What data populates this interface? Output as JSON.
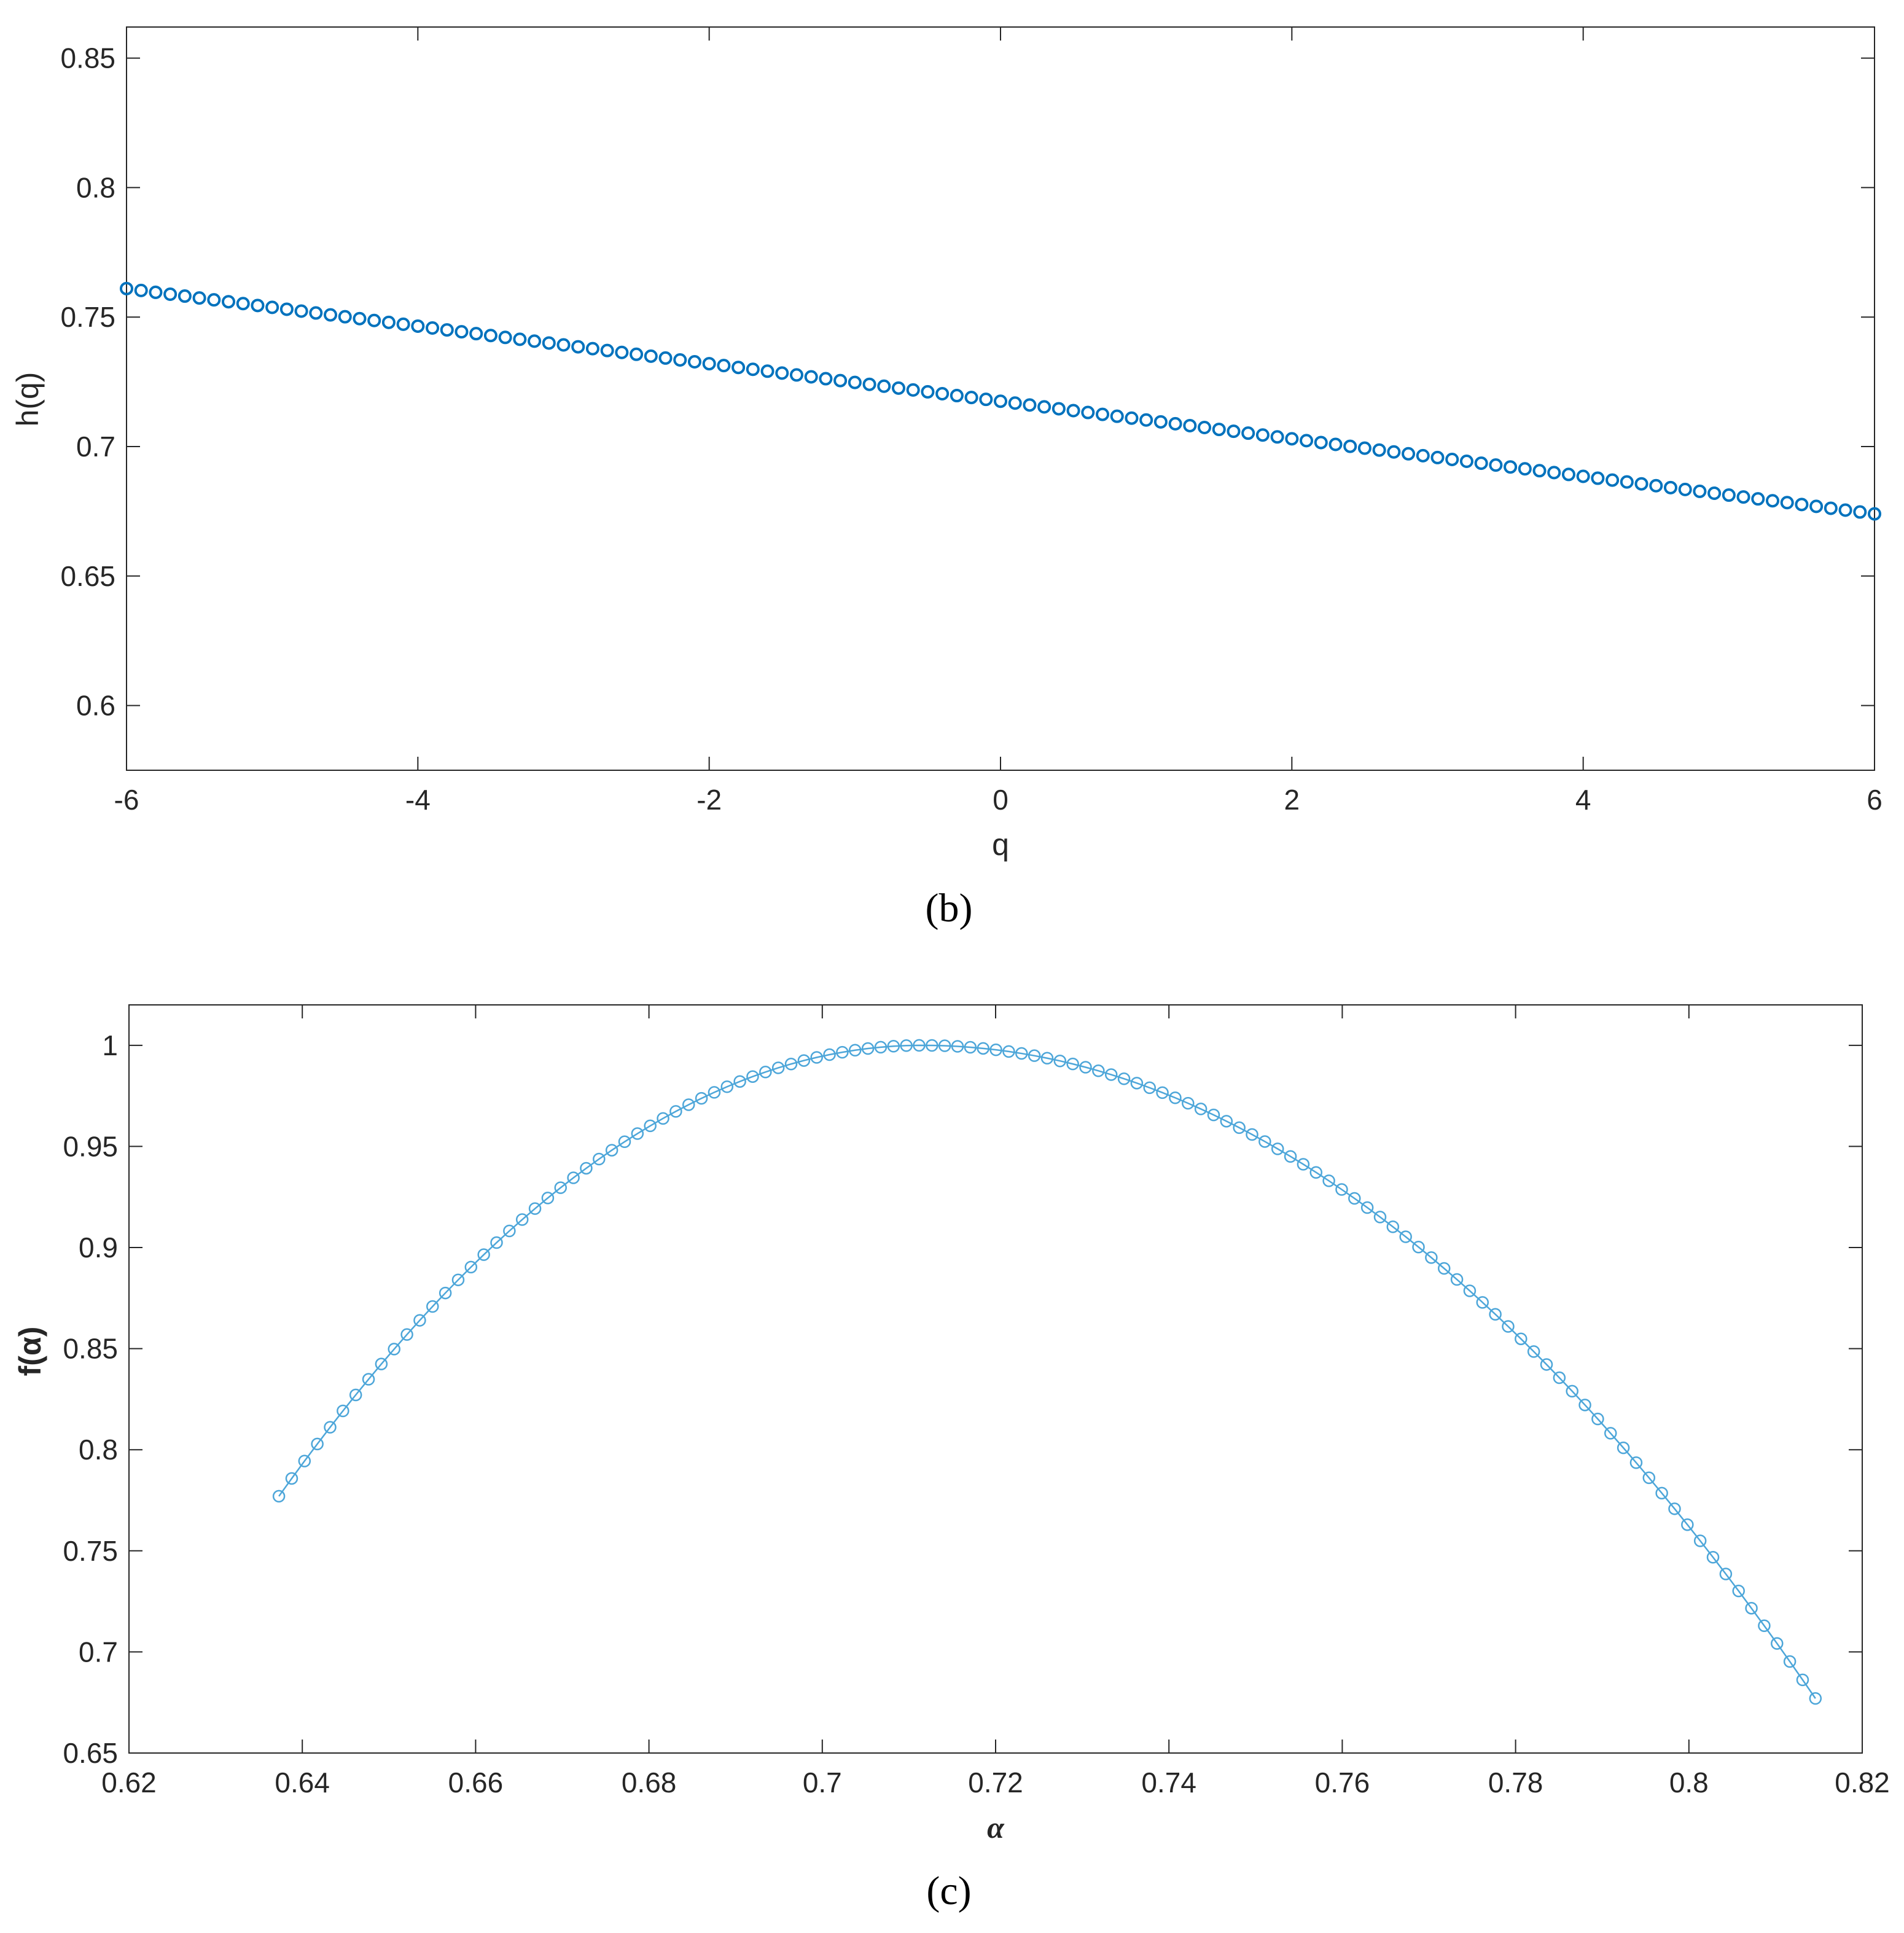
{
  "colors": {
    "series_b": "#0072BD",
    "series_c": "#4DA6D9",
    "axis": "#262626"
  },
  "chart_data": [
    {
      "type": "scatter",
      "panel_label": "(b)",
      "xlabel": "q",
      "ylabel": "h(q)",
      "xlim": [
        -6,
        6
      ],
      "ylim": [
        0.575,
        0.862
      ],
      "xticks": [
        -6,
        -4,
        -2,
        0,
        2,
        4,
        6
      ],
      "xtick_labels": [
        "-6",
        "-4",
        "-2",
        "0",
        "2",
        "4",
        "6"
      ],
      "yticks": [
        0.6,
        0.65,
        0.7,
        0.75,
        0.8,
        0.85
      ],
      "ytick_labels": [
        "0.6",
        "0.65",
        "0.7",
        "0.75",
        "0.8",
        "0.85"
      ],
      "grid": false,
      "marker": "circle",
      "series": [
        {
          "x": [
            -6,
            -5.9,
            -5.8,
            -5.7,
            -5.6,
            -5.5,
            -5.4,
            -5.3,
            -5.2,
            -5.1,
            -5,
            -4.9,
            -4.8,
            -4.7,
            -4.6,
            -4.5,
            -4.4,
            -4.3,
            -4.2,
            -4.1,
            -4,
            -3.9,
            -3.8,
            -3.7,
            -3.6,
            -3.5,
            -3.4,
            -3.3,
            -3.2,
            -3.1,
            -3,
            -2.9,
            -2.8,
            -2.7,
            -2.6,
            -2.5,
            -2.4,
            -2.3,
            -2.2,
            -2.1,
            -2,
            -1.9,
            -1.8,
            -1.7,
            -1.6,
            -1.5,
            -1.4,
            -1.3,
            -1.2,
            -1.1,
            -1,
            -0.9,
            -0.8,
            -0.7,
            -0.6,
            -0.5,
            -0.4,
            -0.3,
            -0.2,
            -0.1,
            0,
            0.1,
            0.2,
            0.3,
            0.4,
            0.5,
            0.6,
            0.7,
            0.8,
            0.9,
            1,
            1.1,
            1.2,
            1.3,
            1.4,
            1.5,
            1.6,
            1.7,
            1.8,
            1.9,
            2,
            2.1,
            2.2,
            2.3,
            2.4,
            2.5,
            2.6,
            2.7,
            2.8,
            2.9,
            3,
            3.1,
            3.2,
            3.3,
            3.4,
            3.5,
            3.6,
            3.7,
            3.8,
            3.9,
            4,
            4.1,
            4.2,
            4.3,
            4.4,
            4.5,
            4.6,
            4.7,
            4.8,
            4.9,
            5,
            5.1,
            5.2,
            5.3,
            5.4,
            5.5,
            5.6,
            5.7,
            5.8,
            5.9,
            6
          ],
          "y": [
            0.761,
            0.7601,
            0.7592,
            0.7583,
            0.7574,
            0.7565,
            0.7556,
            0.7547,
            0.7538,
            0.7529,
            0.752,
            0.7511,
            0.7502,
            0.7493,
            0.7484,
            0.7475,
            0.7466,
            0.7457,
            0.7448,
            0.7439,
            0.743,
            0.7421,
            0.7412,
            0.7403,
            0.7394,
            0.7385,
            0.7376,
            0.7367,
            0.7358,
            0.7349,
            0.734,
            0.7331,
            0.7322,
            0.7313,
            0.7304,
            0.7295,
            0.7286,
            0.7277,
            0.7268,
            0.7259,
            0.725,
            0.7241,
            0.7232,
            0.7223,
            0.7214,
            0.7205,
            0.7196,
            0.7187,
            0.7178,
            0.7169,
            0.716,
            0.7152,
            0.7144,
            0.7136,
            0.7128,
            0.712,
            0.7112,
            0.7104,
            0.7096,
            0.7088,
            0.711,
            0.7101,
            0.7092,
            0.7083,
            0.7074,
            0.7065,
            0.7056,
            0.7047,
            0.7038,
            0.7029,
            0.702,
            0.7012,
            0.7004,
            0.6996,
            0.6988,
            0.698,
            0.6972,
            0.6964,
            0.6956,
            0.6948,
            0.694,
            0.6993,
            0.6986,
            0.6979,
            0.6972,
            0.6965,
            0.6958,
            0.6951,
            0.6944,
            0.6937,
            0.693,
            0.6922,
            0.6914,
            0.6906,
            0.6898,
            0.689,
            0.6882,
            0.6874,
            0.6866,
            0.6858,
            0.685,
            0.6842,
            0.6834,
            0.6826,
            0.6818,
            0.681,
            0.6802,
            0.6794,
            0.6786,
            0.6778,
            0.677,
            0.6762,
            0.6754,
            0.6746,
            0.6738,
            0.673,
            0.6722,
            0.6714,
            0.6706,
            0.6698,
            0.674
          ]
        }
      ]
    },
    {
      "type": "line",
      "panel_label": "(c)",
      "xlabel": "α",
      "ylabel": "f(α)",
      "xlim": [
        0.62,
        0.82
      ],
      "ylim": [
        0.65,
        1.02
      ],
      "xticks": [
        0.62,
        0.64,
        0.66,
        0.68,
        0.7,
        0.72,
        0.74,
        0.76,
        0.78,
        0.8,
        0.82
      ],
      "xtick_labels": [
        "0.62",
        "0.64",
        "0.66",
        "0.68",
        "0.7",
        "0.72",
        "0.74",
        "0.76",
        "0.78",
        "0.8",
        "0.82"
      ],
      "yticks": [
        0.65,
        0.7,
        0.75,
        0.8,
        0.85,
        0.9,
        0.95,
        1
      ],
      "ytick_labels": [
        "0.65",
        "0.7",
        "0.75",
        "0.8",
        "0.85",
        "0.9",
        "0.95",
        "1"
      ],
      "grid": false,
      "marker": "circle",
      "series": [
        {
          "alpha_min": 0.6373,
          "alpha_max": 0.8146,
          "alpha_peak": 0.7115,
          "f_peak": 1.0,
          "f_left_end": 0.777,
          "f_right_end": 0.677,
          "point_count": 121
        }
      ]
    }
  ]
}
